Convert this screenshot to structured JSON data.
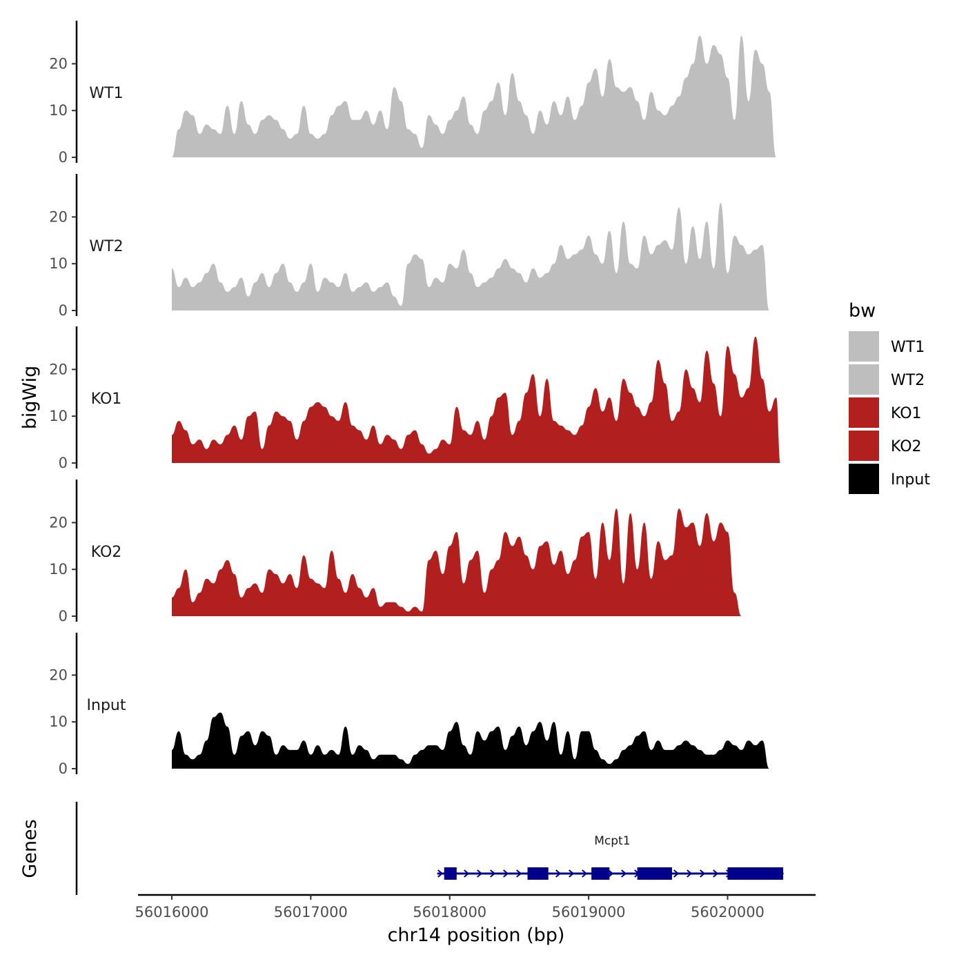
{
  "chart_data": {
    "type": "area",
    "ylabel": "bigWig",
    "xlabel": "chr14 position (bp)",
    "genes_label": "Genes",
    "ylim": [
      0,
      28
    ],
    "yticks": [
      0,
      10,
      20
    ],
    "xlim": [
      56015750,
      56020650
    ],
    "xticks": [
      56016000,
      56017000,
      56018000,
      56019000,
      56020000
    ],
    "legend": {
      "title": "bw",
      "position": "right",
      "entries": [
        {
          "label": "WT1",
          "color": "#bebebe"
        },
        {
          "label": "WT2",
          "color": "#bebebe"
        },
        {
          "label": "KO1",
          "color": "#b21f1f"
        },
        {
          "label": "KO2",
          "color": "#b21f1f"
        },
        {
          "label": "Input",
          "color": "#000000"
        }
      ]
    },
    "tracks": [
      {
        "name": "WT1",
        "color": "#bebebe",
        "x": [
          56016000,
          56016050,
          56016100,
          56016150,
          56016200,
          56016250,
          56016300,
          56016350,
          56016400,
          56016450,
          56016500,
          56016550,
          56016600,
          56016650,
          56016700,
          56016750,
          56016800,
          56016850,
          56016900,
          56016950,
          56017000,
          56017050,
          56017100,
          56017150,
          56017200,
          56017250,
          56017300,
          56017350,
          56017400,
          56017450,
          56017500,
          56017550,
          56017600,
          56017650,
          56017700,
          56017750,
          56017800,
          56017850,
          56017900,
          56017950,
          56018000,
          56018050,
          56018100,
          56018150,
          56018200,
          56018250,
          56018300,
          56018350,
          56018400,
          56018450,
          56018500,
          56018550,
          56018600,
          56018650,
          56018700,
          56018750,
          56018800,
          56018850,
          56018900,
          56018950,
          56019000,
          56019050,
          56019100,
          56019150,
          56019200,
          56019250,
          56019300,
          56019350,
          56019400,
          56019450,
          56019500,
          56019550,
          56019600,
          56019650,
          56019700,
          56019750,
          56019800,
          56019850,
          56019900,
          56019950,
          56020000,
          56020050,
          56020100,
          56020150,
          56020200,
          56020250,
          56020300,
          56020350,
          56020380
        ],
        "values": [
          0,
          6,
          10,
          9,
          5,
          7,
          6,
          5,
          11,
          5,
          12,
          7,
          5,
          8,
          9,
          8,
          6,
          4,
          5,
          11,
          5,
          4,
          5,
          9,
          11,
          12,
          8,
          8,
          10,
          7,
          10,
          6,
          15,
          12,
          6,
          5,
          2,
          9,
          7,
          5,
          8,
          10,
          13,
          7,
          5,
          10,
          12,
          16,
          9,
          18,
          12,
          9,
          5,
          10,
          7,
          12,
          9,
          13,
          8,
          11,
          16,
          19,
          13,
          21,
          15,
          14,
          15,
          12,
          8,
          14,
          10,
          9,
          11,
          13,
          17,
          20,
          26,
          20,
          24,
          22,
          17,
          8,
          26,
          12,
          23,
          20,
          14,
          0,
          0
        ],
        "_note": "values approximate"
      },
      {
        "name": "WT2",
        "color": "#bebebe",
        "x": [
          56016000,
          56016050,
          56016100,
          56016150,
          56016200,
          56016250,
          56016300,
          56016350,
          56016400,
          56016450,
          56016500,
          56016550,
          56016600,
          56016650,
          56016700,
          56016750,
          56016800,
          56016850,
          56016900,
          56016950,
          56017000,
          56017050,
          56017100,
          56017150,
          56017200,
          56017250,
          56017300,
          56017350,
          56017400,
          56017450,
          56017500,
          56017550,
          56017600,
          56017650,
          56017700,
          56017750,
          56017800,
          56017850,
          56017900,
          56017950,
          56018000,
          56018050,
          56018100,
          56018150,
          56018200,
          56018250,
          56018300,
          56018350,
          56018400,
          56018450,
          56018500,
          56018550,
          56018600,
          56018650,
          56018700,
          56018750,
          56018800,
          56018850,
          56018900,
          56018950,
          56019000,
          56019050,
          56019100,
          56019150,
          56019200,
          56019250,
          56019300,
          56019350,
          56019400,
          56019450,
          56019500,
          56019550,
          56019600,
          56019650,
          56019700,
          56019750,
          56019800,
          56019850,
          56019900,
          56019950,
          56020000,
          56020050,
          56020100,
          56020150,
          56020200,
          56020250,
          56020300,
          56020350,
          56020380
        ],
        "values": [
          9,
          5,
          7,
          5,
          6,
          8,
          10,
          6,
          4,
          5,
          7,
          3,
          6,
          8,
          5,
          8,
          10,
          6,
          4,
          6,
          10,
          4,
          7,
          6,
          5,
          8,
          4,
          5,
          6,
          4,
          5,
          6,
          3,
          1,
          10,
          12,
          11,
          5,
          7,
          6,
          10,
          9,
          13,
          8,
          5,
          6,
          7,
          9,
          11,
          9,
          8,
          6,
          9,
          7,
          8,
          10,
          14,
          11,
          12,
          13,
          16,
          12,
          10,
          17,
          8,
          19,
          10,
          9,
          16,
          12,
          14,
          15,
          13,
          22,
          10,
          18,
          11,
          19,
          9,
          23,
          8,
          16,
          14,
          12,
          13,
          14,
          0,
          0,
          0
        ],
        "_note": "values approximate"
      },
      {
        "name": "KO1",
        "color": "#b21f1f",
        "x": [
          56016000,
          56016050,
          56016100,
          56016150,
          56016200,
          56016250,
          56016300,
          56016350,
          56016400,
          56016450,
          56016500,
          56016550,
          56016600,
          56016650,
          56016700,
          56016750,
          56016800,
          56016850,
          56016900,
          56016950,
          56017000,
          56017050,
          56017100,
          56017150,
          56017200,
          56017250,
          56017300,
          56017350,
          56017400,
          56017450,
          56017500,
          56017550,
          56017600,
          56017650,
          56017700,
          56017750,
          56017800,
          56017850,
          56017900,
          56017950,
          56018000,
          56018050,
          56018100,
          56018150,
          56018200,
          56018250,
          56018300,
          56018350,
          56018400,
          56018450,
          56018500,
          56018550,
          56018600,
          56018650,
          56018700,
          56018750,
          56018800,
          56018850,
          56018900,
          56018950,
          56019000,
          56019050,
          56019100,
          56019150,
          56019200,
          56019250,
          56019300,
          56019350,
          56019400,
          56019450,
          56019500,
          56019550,
          56019600,
          56019650,
          56019700,
          56019750,
          56019800,
          56019850,
          56019900,
          56019950,
          56020000,
          56020050,
          56020100,
          56020150,
          56020200,
          56020250,
          56020300,
          56020350,
          56020380
        ],
        "values": [
          6,
          9,
          7,
          4,
          5,
          3,
          5,
          4,
          6,
          8,
          5,
          10,
          11,
          3,
          8,
          11,
          10,
          9,
          5,
          9,
          12,
          13,
          12,
          10,
          9,
          13,
          8,
          7,
          5,
          8,
          4,
          6,
          5,
          3,
          6,
          7,
          4,
          2,
          3,
          5,
          4,
          12,
          7,
          6,
          9,
          5,
          10,
          14,
          15,
          6,
          9,
          15,
          19,
          10,
          18,
          9,
          8,
          7,
          6,
          8,
          12,
          16,
          11,
          14,
          9,
          18,
          15,
          12,
          10,
          13,
          22,
          17,
          9,
          11,
          20,
          16,
          13,
          24,
          17,
          10,
          25,
          19,
          14,
          16,
          27,
          18,
          11,
          14,
          0
        ],
        "_note": "values approximate"
      },
      {
        "name": "KO2",
        "color": "#b21f1f",
        "x": [
          56016000,
          56016050,
          56016100,
          56016150,
          56016200,
          56016250,
          56016300,
          56016350,
          56016400,
          56016450,
          56016500,
          56016550,
          56016600,
          56016650,
          56016700,
          56016750,
          56016800,
          56016850,
          56016900,
          56016950,
          56017000,
          56017050,
          56017100,
          56017150,
          56017200,
          56017250,
          56017300,
          56017350,
          56017400,
          56017450,
          56017500,
          56017550,
          56017600,
          56017650,
          56017700,
          56017750,
          56017800,
          56017850,
          56017900,
          56017950,
          56018000,
          56018050,
          56018100,
          56018150,
          56018200,
          56018250,
          56018300,
          56018350,
          56018400,
          56018450,
          56018500,
          56018550,
          56018600,
          56018650,
          56018700,
          56018750,
          56018800,
          56018850,
          56018900,
          56018950,
          56019000,
          56019050,
          56019100,
          56019150,
          56019200,
          56019250,
          56019300,
          56019350,
          56019400,
          56019450,
          56019500,
          56019550,
          56019600,
          56019650,
          56019700,
          56019750,
          56019800,
          56019850,
          56019900,
          56019950,
          56020000,
          56020050,
          56020100,
          56020150,
          56020200,
          56020250,
          56020300,
          56020350,
          56020380
        ],
        "values": [
          4,
          6,
          10,
          3,
          5,
          8,
          7,
          10,
          12,
          9,
          4,
          6,
          7,
          5,
          10,
          9,
          7,
          9,
          6,
          13,
          8,
          7,
          6,
          14,
          8,
          5,
          9,
          6,
          4,
          6,
          2,
          3,
          3,
          2,
          1,
          2,
          1,
          12,
          14,
          9,
          15,
          18,
          7,
          12,
          14,
          5,
          10,
          12,
          18,
          15,
          17,
          13,
          10,
          15,
          16,
          11,
          14,
          9,
          12,
          17,
          18,
          8,
          20,
          12,
          23,
          7,
          22,
          10,
          20,
          8,
          16,
          12,
          13,
          23,
          19,
          20,
          15,
          22,
          16,
          20,
          18,
          5,
          0,
          0,
          0,
          0,
          0,
          0,
          0
        ],
        "_note": "values approximate"
      },
      {
        "name": "Input",
        "color": "#000000",
        "x": [
          56016000,
          56016050,
          56016100,
          56016150,
          56016200,
          56016250,
          56016300,
          56016350,
          56016400,
          56016450,
          56016500,
          56016550,
          56016600,
          56016650,
          56016700,
          56016750,
          56016800,
          56016850,
          56016900,
          56016950,
          56017000,
          56017050,
          56017100,
          56017150,
          56017200,
          56017250,
          56017300,
          56017350,
          56017400,
          56017450,
          56017500,
          56017550,
          56017600,
          56017650,
          56017700,
          56017750,
          56017800,
          56017850,
          56017900,
          56017950,
          56018000,
          56018050,
          56018100,
          56018150,
          56018200,
          56018250,
          56018300,
          56018350,
          56018400,
          56018450,
          56018500,
          56018550,
          56018600,
          56018650,
          56018700,
          56018750,
          56018800,
          56018850,
          56018900,
          56018950,
          56019000,
          56019050,
          56019100,
          56019150,
          56019200,
          56019250,
          56019300,
          56019350,
          56019400,
          56019450,
          56019500,
          56019550,
          56019600,
          56019650,
          56019700,
          56019750,
          56019800,
          56019850,
          56019900,
          56019950,
          56020000,
          56020050,
          56020100,
          56020150,
          56020200,
          56020250,
          56020300,
          56020350,
          56020380
        ],
        "values": [
          4,
          8,
          3,
          2,
          3,
          6,
          11,
          12,
          9,
          3,
          7,
          8,
          5,
          8,
          7,
          3,
          5,
          4,
          4,
          6,
          3,
          5,
          3,
          4,
          3,
          9,
          3,
          5,
          4,
          2,
          3,
          3,
          3,
          2,
          1,
          3,
          4,
          5,
          5,
          4,
          8,
          10,
          5,
          3,
          8,
          6,
          8,
          9,
          4,
          7,
          9,
          5,
          8,
          10,
          6,
          10,
          3,
          8,
          2,
          8,
          8,
          4,
          2,
          1,
          2,
          4,
          5,
          7,
          8,
          4,
          6,
          4,
          4,
          5,
          6,
          5,
          4,
          3,
          3,
          4,
          6,
          5,
          4,
          6,
          5,
          6,
          0,
          0,
          0
        ],
        "_note": "values approximate"
      }
    ],
    "gene": {
      "name": "Mcpt1",
      "strand": "+",
      "start": 56017960,
      "end": 56020400,
      "exons": [
        [
          56017960,
          56018050
        ],
        [
          56018560,
          56018710
        ],
        [
          56019020,
          56019150
        ],
        [
          56019350,
          56019600
        ],
        [
          56020000,
          56020400
        ]
      ]
    }
  }
}
